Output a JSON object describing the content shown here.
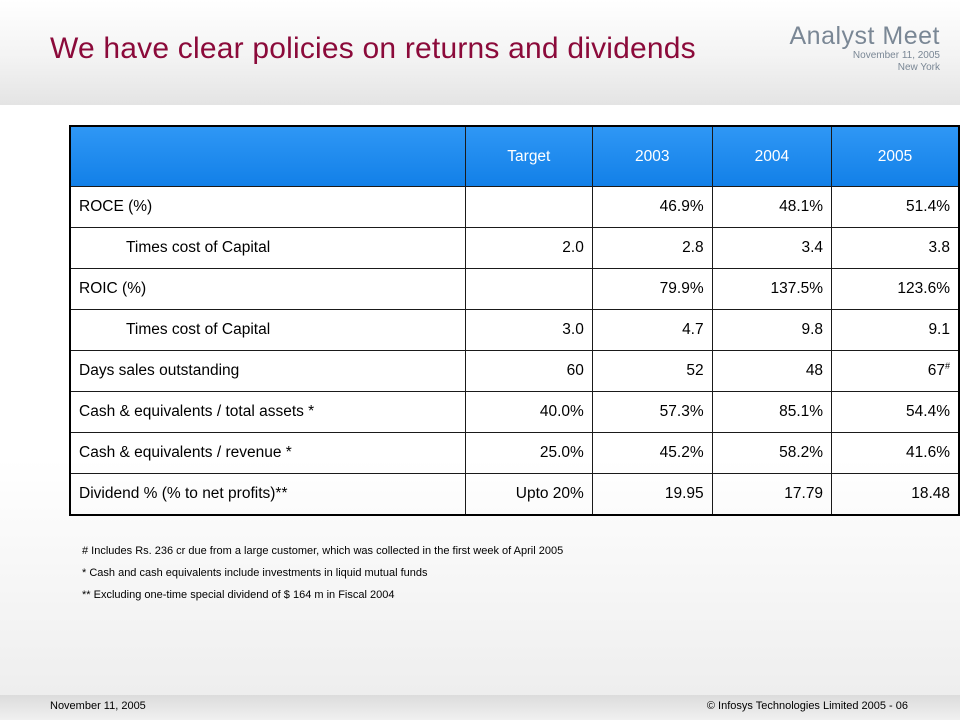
{
  "slide": {
    "title": "We have clear policies on returns and dividends"
  },
  "event": {
    "name": "Analyst Meet",
    "date": "November 11, 2005",
    "city": "New York"
  },
  "table": {
    "headers": [
      "",
      "Target",
      "2003",
      "2004",
      "2005"
    ],
    "rows": [
      {
        "label": "ROCE (%)",
        "cells": [
          "",
          "46.9%",
          "48.1%",
          "51.4%"
        ]
      },
      {
        "label": "Times cost of Capital",
        "cells": [
          "2.0",
          "2.8",
          "3.4",
          "3.8"
        ]
      },
      {
        "label": "ROIC (%)",
        "cells": [
          "",
          "79.9%",
          "137.5%",
          "123.6%"
        ]
      },
      {
        "label": "Times cost of Capital",
        "cells": [
          "3.0",
          "4.7",
          "9.8",
          "9.1"
        ]
      },
      {
        "label": "Days sales outstanding",
        "cells": [
          "60",
          "52",
          "48",
          "67"
        ],
        "last_sup": "#"
      },
      {
        "label": "Cash & equivalents / total assets *",
        "cells": [
          "40.0%",
          "57.3%",
          "85.1%",
          "54.4%"
        ]
      },
      {
        "label": "Cash & equivalents / revenue *",
        "cells": [
          "25.0%",
          "45.2%",
          "58.2%",
          "41.6%"
        ]
      },
      {
        "label": "Dividend % (% to net profits)**",
        "cells": [
          "Upto 20%",
          "19.95",
          "17.79",
          "18.48"
        ]
      }
    ]
  },
  "notes": [
    "# Includes Rs. 236 cr due from a large customer, which was collected in the first week of April 2005",
    "* Cash and cash equivalents include investments in liquid mutual funds",
    "** Excluding one-time special dividend of $ 164 m in Fiscal 2004"
  ],
  "footer": {
    "date": "November 11, 2005",
    "copyright": "© Infosys Technologies Limited 2005 - 06"
  }
}
